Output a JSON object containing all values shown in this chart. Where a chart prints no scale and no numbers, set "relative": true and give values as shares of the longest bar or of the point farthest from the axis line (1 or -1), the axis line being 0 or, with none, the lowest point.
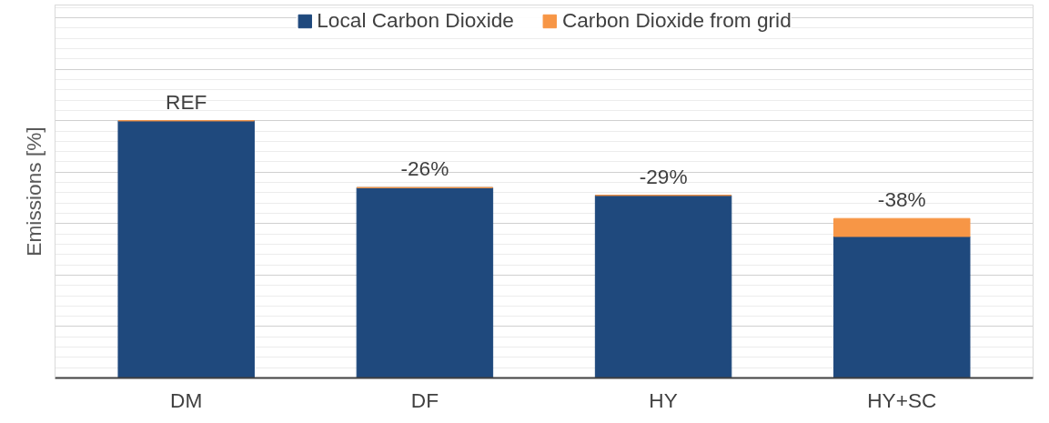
{
  "chart_data": {
    "type": "bar",
    "ylabel": "Emissions [%]",
    "categories": [
      "DM",
      "DF",
      "HY",
      "HY+SC"
    ],
    "relative": true,
    "stacked": true,
    "grid": "y",
    "legend": "top",
    "series": [
      {
        "name": "Local Carbon Dioxide",
        "color": "#1f497d",
        "values": [
          1.0,
          0.74,
          0.71,
          0.55
        ]
      },
      {
        "name": "Carbon Dioxide from grid",
        "color": "#f79646",
        "values": [
          null,
          null,
          null,
          0.07
        ]
      }
    ],
    "annotations": [
      {
        "text": "REF",
        "x": "DM",
        "y": 1.0
      },
      {
        "text": "-26%",
        "x": "DF",
        "y": 0.74
      },
      {
        "text": "-29%",
        "x": "HY",
        "y": 0.71
      },
      {
        "text": "-38%",
        "x": "HY+SC",
        "y": 0.62
      }
    ]
  }
}
